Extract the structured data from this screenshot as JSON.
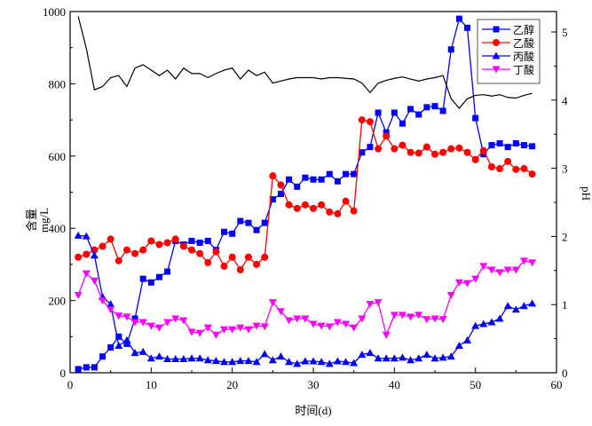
{
  "chart_data": {
    "type": "line",
    "xlabel": "时间(d)",
    "ylabel": "含量",
    "ylabel_unit": "mg/L",
    "y2label": "pH",
    "xlim": [
      0,
      60
    ],
    "ylim": [
      0,
      1000
    ],
    "y2lim": [
      0,
      5.3
    ],
    "x_ticks": [
      0,
      10,
      20,
      30,
      40,
      50,
      60
    ],
    "y_ticks": [
      0,
      200,
      400,
      600,
      800,
      1000
    ],
    "y2_ticks": [
      0,
      1,
      2,
      3,
      4,
      5
    ],
    "grid": false,
    "legend_position": "top-right",
    "x": [
      1,
      2,
      3,
      4,
      5,
      6,
      7,
      8,
      9,
      10,
      11,
      12,
      13,
      14,
      15,
      16,
      17,
      18,
      19,
      20,
      21,
      22,
      23,
      24,
      25,
      26,
      27,
      28,
      29,
      30,
      31,
      32,
      33,
      34,
      35,
      36,
      37,
      38,
      39,
      40,
      41,
      42,
      43,
      44,
      45,
      46,
      47,
      48,
      49,
      50,
      51,
      52,
      53,
      54,
      55,
      56,
      57
    ],
    "series": [
      {
        "name": "乙醇",
        "axis": "left",
        "marker": "square",
        "color": "#0000ff",
        "values": [
          10,
          15,
          15,
          45,
          70,
          100,
          80,
          150,
          260,
          250,
          265,
          280,
          365,
          355,
          365,
          360,
          365,
          340,
          390,
          385,
          420,
          415,
          395,
          415,
          480,
          495,
          535,
          515,
          540,
          535,
          535,
          550,
          530,
          550,
          550,
          610,
          625,
          720,
          665,
          720,
          690,
          730,
          715,
          735,
          738,
          725,
          895,
          980,
          955,
          705,
          605,
          630,
          635,
          625,
          635,
          630,
          627
        ]
      },
      {
        "name": "乙酸",
        "axis": "left",
        "marker": "circle",
        "color": "#ff0000",
        "values": [
          320,
          328,
          340,
          350,
          370,
          310,
          340,
          330,
          340,
          365,
          355,
          360,
          370,
          350,
          340,
          330,
          305,
          335,
          295,
          320,
          285,
          320,
          300,
          320,
          545,
          520,
          465,
          455,
          465,
          455,
          465,
          445,
          440,
          475,
          448,
          700,
          695,
          620,
          655,
          620,
          630,
          610,
          608,
          625,
          605,
          610,
          620,
          622,
          610,
          590,
          615,
          570,
          565,
          585,
          563,
          565,
          550
        ]
      },
      {
        "name": "丙酸",
        "axis": "left",
        "marker": "triangle-up",
        "color": "#0000ff",
        "values": [
          380,
          378,
          325,
          210,
          190,
          75,
          90,
          55,
          58,
          40,
          45,
          38,
          38,
          38,
          40,
          40,
          35,
          33,
          30,
          30,
          33,
          33,
          30,
          52,
          35,
          45,
          30,
          25,
          32,
          32,
          30,
          25,
          32,
          30,
          27,
          50,
          55,
          40,
          40,
          40,
          42,
          35,
          40,
          50,
          40,
          42,
          45,
          75,
          90,
          130,
          135,
          140,
          150,
          185,
          175,
          185,
          192
        ]
      },
      {
        "name": "丁酸",
        "axis": "left",
        "marker": "triangle-down",
        "color": "#ff00ff",
        "values": [
          215,
          275,
          255,
          200,
          175,
          158,
          155,
          140,
          140,
          130,
          125,
          140,
          150,
          145,
          113,
          110,
          125,
          105,
          120,
          120,
          125,
          120,
          130,
          128,
          195,
          170,
          145,
          150,
          150,
          135,
          130,
          128,
          140,
          135,
          125,
          150,
          190,
          195,
          105,
          160,
          160,
          155,
          160,
          148,
          150,
          148,
          215,
          250,
          248,
          260,
          295,
          285,
          278,
          285,
          285,
          310,
          305
        ]
      },
      {
        "name": "",
        "axis": "right",
        "marker": "none",
        "color": "#000000",
        "values": [
          5.23,
          4.76,
          4.15,
          4.2,
          4.33,
          4.36,
          4.2,
          4.47,
          4.52,
          4.44,
          4.36,
          4.44,
          4.31,
          4.47,
          4.39,
          4.39,
          4.33,
          4.39,
          4.44,
          4.47,
          4.31,
          4.44,
          4.36,
          4.41,
          4.25,
          4.28,
          4.31,
          4.33,
          4.33,
          4.33,
          4.31,
          4.33,
          4.33,
          4.32,
          4.31,
          4.25,
          4.11,
          4.25,
          4.29,
          4.32,
          4.34,
          4.31,
          4.28,
          4.31,
          4.33,
          4.36,
          4.02,
          3.88,
          4.02,
          4.07,
          4.08,
          4.06,
          4.08,
          4.04,
          4.03,
          4.07,
          4.1
        ]
      }
    ]
  }
}
